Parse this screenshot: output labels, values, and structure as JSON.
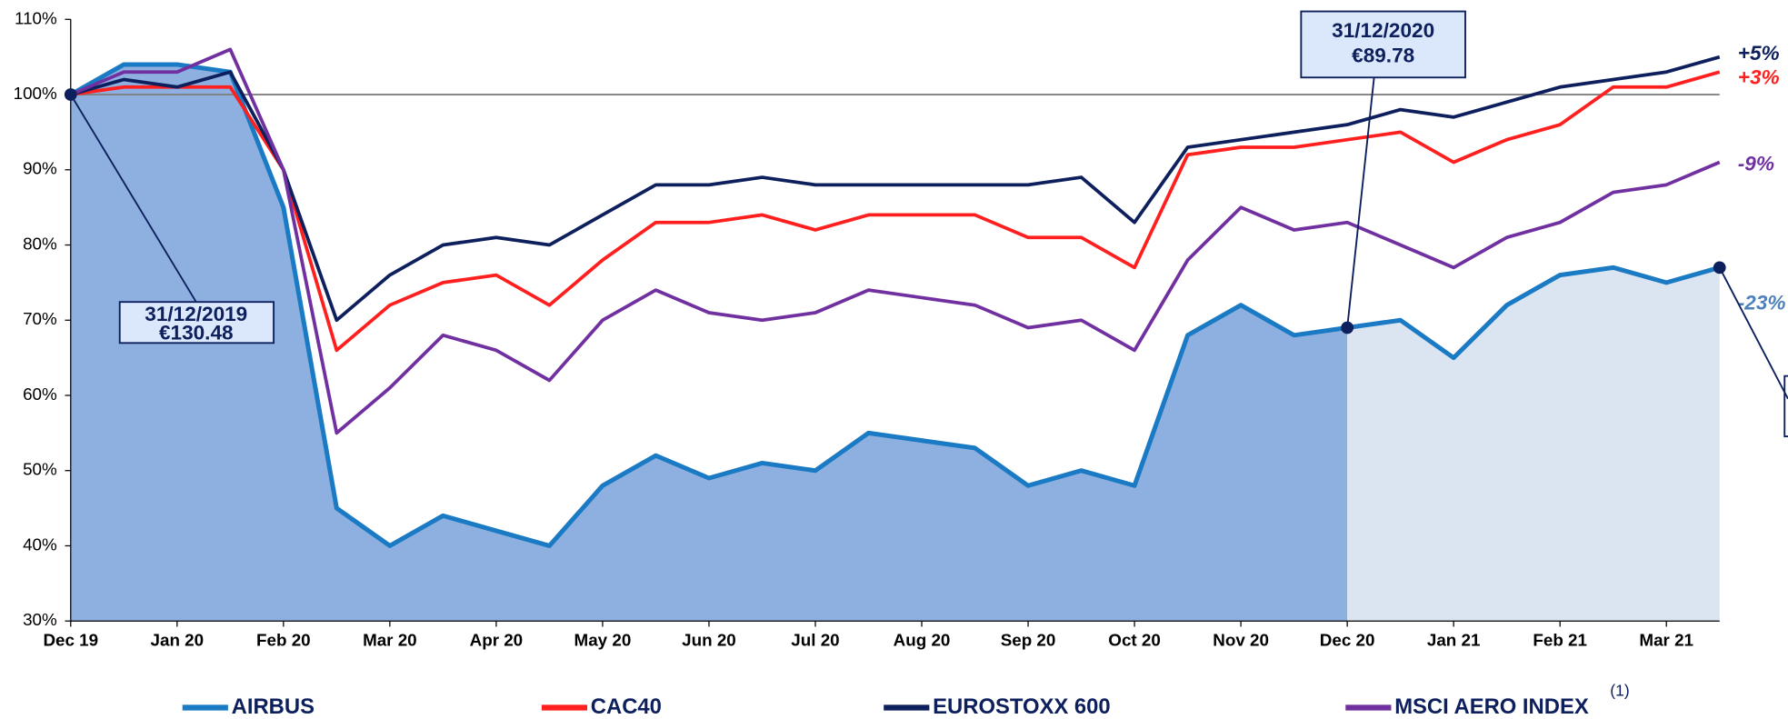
{
  "chart_data": {
    "type": "line",
    "categories": [
      "Dec 19",
      null,
      "Jan 20",
      null,
      "Feb 20",
      null,
      "Mar 20",
      null,
      "Apr 20",
      null,
      "May 20",
      null,
      "Jun 20",
      null,
      "Jul 20",
      null,
      "Aug 20",
      null,
      "Sep 20",
      null,
      "Oct 20",
      null,
      "Nov 20",
      null,
      "Dec 20",
      null,
      "Jan 21",
      null,
      "Feb 21",
      null,
      "Mar 21",
      null
    ],
    "series": [
      {
        "name": "AIRBUS",
        "color": "#1a7ac4",
        "end_label": "-23%",
        "end_color": "#4f81bd",
        "values": [
          100,
          104,
          104,
          103,
          85,
          45,
          40,
          44,
          42,
          40,
          48,
          52,
          49,
          51,
          50,
          55,
          54,
          53,
          48,
          50,
          48,
          68,
          72,
          68,
          69,
          70,
          65,
          72,
          76,
          77,
          75,
          77
        ]
      },
      {
        "name": "CAC40",
        "color": "#ff1f1f",
        "end_label": "+3%",
        "end_color": "#ff1f1f",
        "values": [
          100,
          101,
          101,
          101,
          90,
          66,
          72,
          75,
          76,
          72,
          78,
          83,
          83,
          84,
          82,
          84,
          84,
          84,
          81,
          81,
          77,
          92,
          93,
          93,
          94,
          95,
          91,
          94,
          96,
          101,
          101,
          103
        ]
      },
      {
        "name": "EUROSTOXX 600",
        "color": "#0d1f5c",
        "end_label": "+5%",
        "end_color": "#0d1f5c",
        "values": [
          100,
          102,
          101,
          103,
          90,
          70,
          76,
          80,
          81,
          80,
          84,
          88,
          88,
          89,
          88,
          88,
          88,
          88,
          88,
          89,
          83,
          93,
          94,
          95,
          96,
          98,
          97,
          99,
          101,
          102,
          103,
          105
        ]
      },
      {
        "name": "MSCI AERO INDEX",
        "color": "#7030a0",
        "end_label": "-9%",
        "end_color": "#7030a0",
        "values": [
          100,
          103,
          103,
          106,
          90,
          55,
          61,
          68,
          66,
          62,
          70,
          74,
          71,
          70,
          71,
          74,
          73,
          72,
          69,
          70,
          66,
          78,
          85,
          82,
          83,
          80,
          77,
          81,
          83,
          87,
          88,
          91
        ]
      }
    ],
    "legend_note": "(1)",
    "area_colors": [
      "#8eb0e1",
      "#dbe4f1"
    ],
    "reference_line": 100,
    "annotations": [
      {
        "date": "31/12/2019",
        "price": "€130.48"
      },
      {
        "date": "31/12/2020",
        "price": "€89.78"
      }
    ],
    "ylim": [
      30,
      110
    ],
    "yticks": [
      {
        "value": 30,
        "label": "30%"
      },
      {
        "value": 40,
        "label": "40%"
      },
      {
        "value": 50,
        "label": "50%"
      },
      {
        "value": 60,
        "label": "60%"
      },
      {
        "value": 70,
        "label": "70%"
      },
      {
        "value": 80,
        "label": "80%"
      },
      {
        "value": 90,
        "label": "90%"
      },
      {
        "value": 100,
        "label": "100%"
      },
      {
        "value": 110,
        "label": "110%"
      }
    ]
  }
}
